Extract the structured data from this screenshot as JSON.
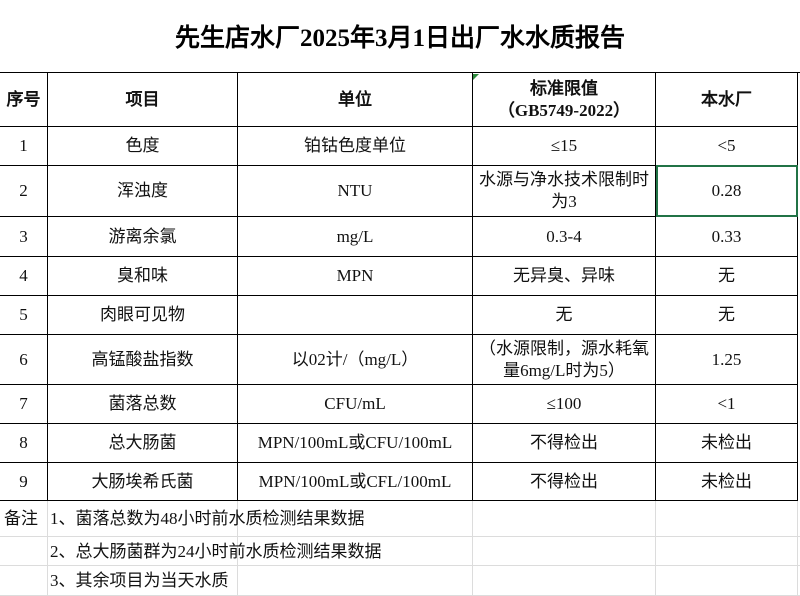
{
  "title": "先生店水厂2025年3月1日出厂水水质报告",
  "table": {
    "headers": [
      "序号",
      "项目",
      "单位",
      "标准限值\n（GB5749-2022）",
      "本水厂"
    ],
    "rows": [
      {
        "no": "1",
        "item": "色度",
        "unit": "铂钴色度单位",
        "standard": "≤15",
        "plant": "<5"
      },
      {
        "no": "2",
        "item": "浑浊度",
        "unit": "NTU",
        "standard": "水源与净水技术限制时为3",
        "plant": "0.28"
      },
      {
        "no": "3",
        "item": "游离余氯",
        "unit": "mg/L",
        "standard": "0.3-4",
        "plant": "0.33"
      },
      {
        "no": "4",
        "item": "臭和味",
        "unit": "MPN",
        "standard": "无异臭、异味",
        "plant": "无"
      },
      {
        "no": "5",
        "item": "肉眼可见物",
        "standard": "无",
        "plant": "无"
      },
      {
        "no": "6",
        "item": "高锰酸盐指数",
        "unit": "以02计/（mg/L）",
        "standard": "（水源限制，源水耗氧量6mg/L时为5）",
        "plant": "1.25"
      },
      {
        "no": "7",
        "item": "菌落总数",
        "unit": "CFU/mL",
        "standard": "≤100",
        "plant": "<1"
      },
      {
        "no": "8",
        "item": "总大肠菌",
        "unit": "MPN/100mL或CFU/100mL",
        "standard": "不得检出",
        "plant": "未检出"
      },
      {
        "no": "9",
        "item": "大肠埃希氏菌",
        "unit": "MPN/100mL或CFL/100mL",
        "standard": "不得检出",
        "plant": "未检出"
      }
    ]
  },
  "notes": {
    "label": "备注",
    "items": [
      "1、菌落总数为48小时前水质检测结果数据",
      "2、总大肠菌群为24小时前水质检测结果数据",
      "3、其余项目为当天水质"
    ]
  }
}
